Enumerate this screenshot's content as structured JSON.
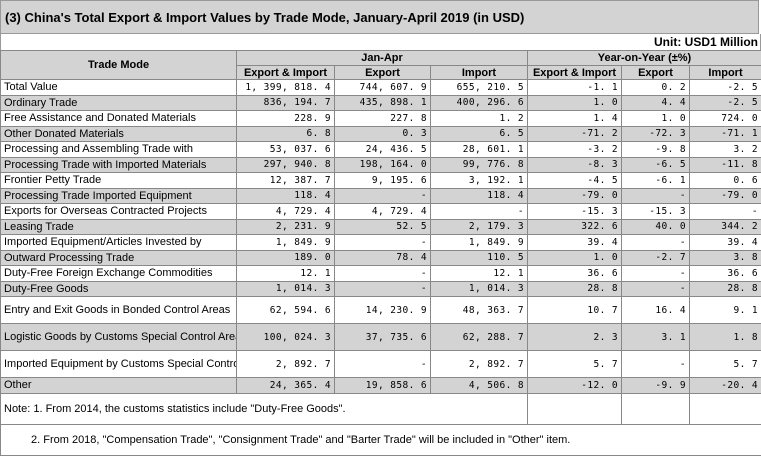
{
  "title": "(3) China's Total Export & Import Values by Trade Mode, January-April 2019 (in USD)",
  "unit": "Unit: USD1 Million",
  "headers": {
    "trade_mode": "Trade Mode",
    "jan_apr": "Jan-Apr",
    "yoy": "Year-on-Year (±%)",
    "export_import": "Export & Import",
    "export": "Export",
    "import": "Import"
  },
  "rows": [
    {
      "mode": "Total Value",
      "ei": "1, 399, 818. 4",
      "ex": "744, 607. 9",
      "im": "655, 210. 5",
      "y_ei": "-1. 1",
      "y_ex": "0. 2",
      "y_im": "-2. 5"
    },
    {
      "mode": "Ordinary Trade",
      "ei": "836, 194. 7",
      "ex": "435, 898. 1",
      "im": "400, 296. 6",
      "y_ei": "1. 0",
      "y_ex": "4. 4",
      "y_im": "-2. 5"
    },
    {
      "mode": "Free Assistance and Donated Materials",
      "ei": "228. 9",
      "ex": "227. 8",
      "im": "1. 2",
      "y_ei": "1. 4",
      "y_ex": "1. 0",
      "y_im": "724. 0"
    },
    {
      "mode": "Other Donated Materials",
      "ei": "6. 8",
      "ex": "0. 3",
      "im": "6. 5",
      "y_ei": "-71. 2",
      "y_ex": "-72. 3",
      "y_im": "-71. 1"
    },
    {
      "mode": "Processing and Assembling Trade with",
      "ei": "53, 037. 6",
      "ex": "24, 436. 5",
      "im": "28, 601. 1",
      "y_ei": "-3. 2",
      "y_ex": "-9. 8",
      "y_im": "3. 2"
    },
    {
      "mode": "Processing Trade with Imported Materials",
      "ei": "297, 940. 8",
      "ex": "198, 164. 0",
      "im": "99, 776. 8",
      "y_ei": "-8. 3",
      "y_ex": "-6. 5",
      "y_im": "-11. 8"
    },
    {
      "mode": "Frontier Petty Trade",
      "ei": "12, 387. 7",
      "ex": "9, 195. 6",
      "im": "3, 192. 1",
      "y_ei": "-4. 5",
      "y_ex": "-6. 1",
      "y_im": "0. 6"
    },
    {
      "mode": "Processing Trade Imported Equipment",
      "ei": "118. 4",
      "ex": "-",
      "im": "118. 4",
      "y_ei": "-79. 0",
      "y_ex": "-",
      "y_im": "-79. 0"
    },
    {
      "mode": "Exports for Overseas Contracted Projects",
      "ei": "4, 729. 4",
      "ex": "4, 729. 4",
      "im": "-",
      "y_ei": "-15. 3",
      "y_ex": "-15. 3",
      "y_im": "-"
    },
    {
      "mode": "Leasing Trade",
      "ei": "2, 231. 9",
      "ex": "52. 5",
      "im": "2, 179. 3",
      "y_ei": "322. 6",
      "y_ex": "40. 0",
      "y_im": "344. 2"
    },
    {
      "mode": "Imported Equipment/Articles Invested by",
      "ei": "1, 849. 9",
      "ex": "-",
      "im": "1, 849. 9",
      "y_ei": "39. 4",
      "y_ex": "-",
      "y_im": "39. 4"
    },
    {
      "mode": "Outward Processing Trade",
      "ei": "189. 0",
      "ex": "78. 4",
      "im": "110. 5",
      "y_ei": "1. 0",
      "y_ex": "-2. 7",
      "y_im": "3. 8"
    },
    {
      "mode": "Duty-Free Foreign Exchange Commodities",
      "ei": "12. 1",
      "ex": "-",
      "im": "12. 1",
      "y_ei": "36. 6",
      "y_ex": "-",
      "y_im": "36. 6"
    },
    {
      "mode": "Duty-Free Goods",
      "ei": "1, 014. 3",
      "ex": "-",
      "im": "1, 014. 3",
      "y_ei": "28. 8",
      "y_ex": "-",
      "y_im": "28. 8"
    },
    {
      "mode": "Entry and Exit Goods in Bonded Control Areas",
      "ei": "62, 594. 6",
      "ex": "14, 230. 9",
      "im": "48, 363. 7",
      "y_ei": "10. 7",
      "y_ex": "16. 4",
      "y_im": "9. 1"
    },
    {
      "mode": "Logistic Goods by Customs Special Control Areas",
      "ei": "100, 024. 3",
      "ex": "37, 735. 6",
      "im": "62, 288. 7",
      "y_ei": "2. 3",
      "y_ex": "3. 1",
      "y_im": "1. 8"
    },
    {
      "mode": "Imported Equipment by Customs Special Control Areas",
      "ei": "2, 892. 7",
      "ex": "-",
      "im": "2, 892. 7",
      "y_ei": "5. 7",
      "y_ex": "-",
      "y_im": "5. 7"
    },
    {
      "mode": "Other",
      "ei": "24, 365. 4",
      "ex": "19, 858. 6",
      "im": "4, 506. 8",
      "y_ei": "-12. 0",
      "y_ex": "-9. 9",
      "y_im": "-20. 4"
    }
  ],
  "notes": [
    "Note: 1. From 2014, the customs statistics include \"Duty-Free Goods\".",
    "2. From 2018, \"Compensation Trade\", \"Consignment Trade\" and \"Barter Trade\" will be included in \"Other\" item."
  ]
}
